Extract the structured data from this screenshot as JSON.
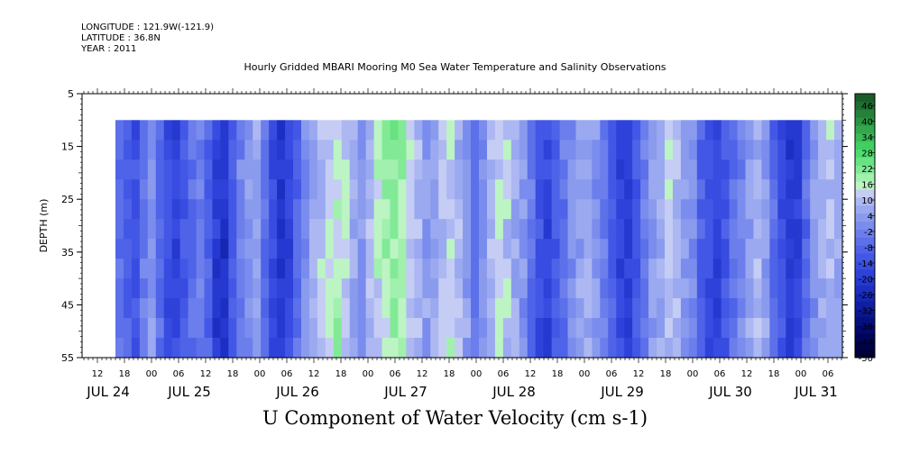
{
  "meta": {
    "longitude": "LONGITUDE : 121.9W(-121.9)",
    "latitude": "LATITUDE : 36.8N",
    "year": "YEAR : 2011"
  },
  "chart_data": {
    "type": "heatmap",
    "title": "Hourly Gridded MBARI Mooring M0 Sea Water Temperature and Salinity Observations",
    "variable_label": "U Component of Water Velocity (cm s-1)",
    "ylabel": "DEPTH (m)",
    "ylim": [
      5,
      55
    ],
    "y_inverted": true,
    "y_ticks": [
      5,
      15,
      25,
      35,
      45,
      55
    ],
    "x_hour_ticks": [
      "12",
      "18",
      "00",
      "06",
      "12",
      "18",
      "00",
      "06",
      "12",
      "18",
      "00",
      "06",
      "12",
      "18",
      "00",
      "06",
      "12",
      "18",
      "00",
      "06",
      "12",
      "18",
      "00",
      "06",
      "12",
      "18",
      "00",
      "06"
    ],
    "x_day_labels": [
      "JUL 24",
      "JUL 25",
      "JUL 26",
      "JUL 27",
      "JUL 28",
      "JUL 29",
      "JUL 30",
      "JUL 31"
    ],
    "data_depth_range": [
      10,
      55
    ],
    "data_time_start": "JUL 24 16:00",
    "colorbar": {
      "labels": [
        "46",
        "40",
        "34",
        "28",
        "22",
        "16",
        "10",
        "4",
        "-2",
        "-8",
        "-14",
        "-20",
        "-26",
        "-32",
        "-38",
        "-44",
        "-50"
      ],
      "levels_top_to_bottom": [
        "#1a5c2a",
        "#1f6e31",
        "#258139",
        "#2b9442",
        "#32a84c",
        "#39bc56",
        "#41cf61",
        "#4edc6e",
        "#67e381",
        "#82ea96",
        "#a1f0ae",
        "#bcf4c4",
        "#c5cdf4",
        "#adb8f2",
        "#9aa9f0",
        "#8a9bee",
        "#7a8ced",
        "#6b7eec",
        "#5c70ea",
        "#4e63e8",
        "#4357e6",
        "#384ce2",
        "#2e42da",
        "#2538cf",
        "#1d2fc2",
        "#1526b3",
        "#0f1ea2",
        "#0a1690",
        "#060f7e",
        "#03096b",
        "#010559",
        "#000247",
        "#000035"
      ]
    },
    "velocity_columns_cm_s": [
      -6,
      -10,
      -14,
      -4,
      2,
      -8,
      -16,
      -18,
      -12,
      -6,
      -2,
      -10,
      -20,
      -24,
      -14,
      -4,
      2,
      4,
      -6,
      -16,
      -22,
      -18,
      -8,
      0,
      6,
      10,
      14,
      16,
      12,
      6,
      2,
      8,
      14,
      18,
      20,
      16,
      12,
      8,
      4,
      6,
      10,
      12,
      8,
      2,
      -4,
      2,
      8,
      12,
      10,
      6,
      2,
      -6,
      -14,
      -18,
      -12,
      -6,
      0,
      4,
      6,
      2,
      -4,
      -10,
      -18,
      -20,
      -12,
      -4,
      2,
      6,
      10,
      8,
      4,
      -2,
      -10,
      -16,
      -18,
      -12,
      -6,
      -2,
      4,
      8,
      4,
      -6,
      -16,
      -22,
      -18,
      -8,
      2,
      6,
      10,
      4
    ]
  }
}
